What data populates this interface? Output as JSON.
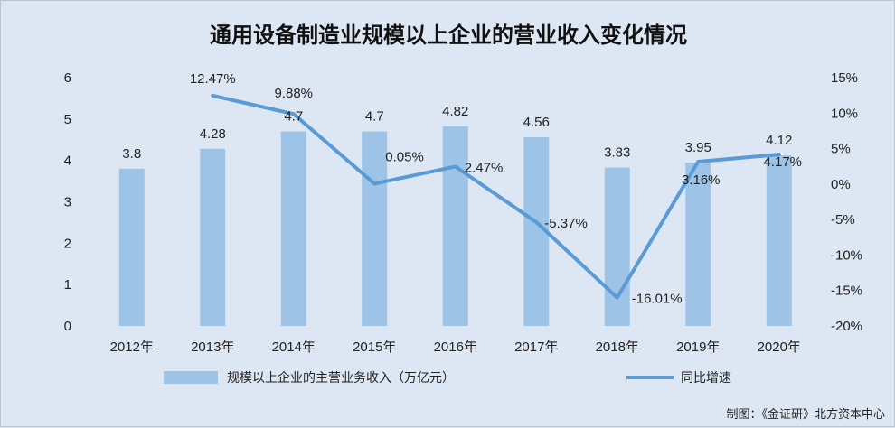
{
  "chart_data": {
    "type": "bar+line",
    "title": "通用设备制造业规模以上企业的营业收入变化情况",
    "categories": [
      "2012年",
      "2013年",
      "2014年",
      "2015年",
      "2016年",
      "2017年",
      "2018年",
      "2019年",
      "2020年"
    ],
    "series": [
      {
        "name": "规模以上企业的主营业务收入（万亿元）",
        "type": "bar",
        "axis": "left",
        "color": "#9dc3e6",
        "values": [
          3.8,
          4.28,
          4.7,
          4.7,
          4.82,
          4.56,
          3.83,
          3.95,
          4.12
        ],
        "labels": [
          "3.8",
          "4.28",
          "4.7",
          "4.7",
          "4.82",
          "4.56",
          "3.83",
          "3.95",
          "4.12"
        ]
      },
      {
        "name": "同比增速",
        "type": "line",
        "axis": "right",
        "color": "#5b9bd5",
        "values": [
          null,
          12.47,
          9.88,
          0.05,
          2.47,
          -5.37,
          -16.01,
          3.16,
          4.17
        ],
        "labels": [
          "",
          "12.47%",
          "9.88%",
          "0.05%",
          "2.47%",
          "-5.37%",
          "-16.01%",
          "3.16%",
          "4.17%"
        ]
      }
    ],
    "y_left": {
      "min": 0,
      "max": 6,
      "ticks": [
        "0",
        "1",
        "2",
        "3",
        "4",
        "5",
        "6"
      ]
    },
    "y_right": {
      "min": -20,
      "max": 15,
      "ticks": [
        "-20%",
        "-15%",
        "-10%",
        "-5%",
        "0%",
        "5%",
        "10%",
        "15%"
      ]
    },
    "grid": false,
    "legend_position": "bottom",
    "source_note": "制图：《金证研》北方资本中心"
  }
}
